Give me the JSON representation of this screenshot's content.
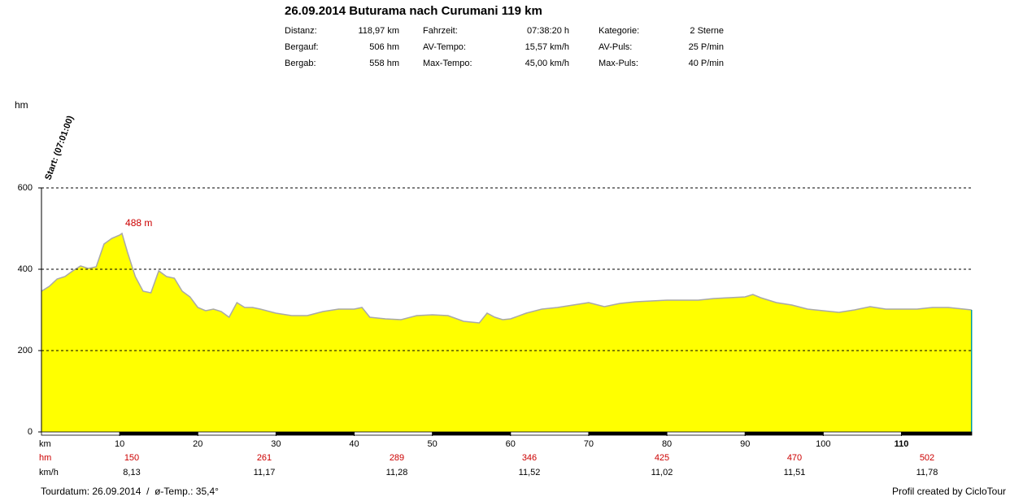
{
  "header": {
    "title": "26.09.2014 Buturama nach Curumani 119 km",
    "stats": [
      [
        {
          "label": "Distanz:",
          "value": "118,97 km"
        },
        {
          "label": "Bergauf:",
          "value": "506 hm"
        },
        {
          "label": "Bergab:",
          "value": "558 hm"
        }
      ],
      [
        {
          "label": "Fahrzeit:",
          "value": "07:38:20 h"
        },
        {
          "label": "AV-Tempo:",
          "value": "15,57 km/h"
        },
        {
          "label": "Max-Tempo:",
          "value": "45,00 km/h"
        }
      ],
      [
        {
          "label": "Kategorie:",
          "value": "2 Sterne"
        },
        {
          "label": "AV-Puls:",
          "value": "25 P/min"
        },
        {
          "label": "Max-Puls:",
          "value": "40 P/min"
        }
      ]
    ]
  },
  "chart_data": {
    "type": "area",
    "ylabel": "hm",
    "xlabel": "km",
    "x": [
      0,
      1,
      2,
      3,
      4,
      5,
      6,
      7,
      8,
      9,
      10,
      10.3,
      11,
      12,
      13,
      14,
      15,
      16,
      17,
      18,
      19,
      20,
      21,
      22,
      23,
      24,
      25,
      26,
      27,
      28,
      30,
      32,
      34,
      36,
      38,
      40,
      41,
      42,
      44,
      46,
      48,
      50,
      52,
      54,
      56,
      57,
      58,
      59,
      60,
      62,
      64,
      66,
      68,
      70,
      72,
      74,
      76,
      78,
      80,
      82,
      84,
      86,
      88,
      90,
      91,
      92,
      94,
      96,
      98,
      100,
      102,
      104,
      106,
      108,
      110,
      112,
      114,
      116,
      118,
      118.97
    ],
    "values": [
      346,
      358,
      376,
      382,
      396,
      408,
      402,
      406,
      462,
      476,
      484,
      488,
      442,
      382,
      346,
      342,
      396,
      382,
      378,
      346,
      332,
      306,
      298,
      302,
      296,
      282,
      318,
      306,
      306,
      302,
      292,
      286,
      286,
      296,
      302,
      302,
      306,
      282,
      278,
      276,
      286,
      288,
      286,
      272,
      268,
      292,
      282,
      276,
      278,
      292,
      302,
      306,
      312,
      318,
      308,
      316,
      320,
      322,
      324,
      324,
      324,
      328,
      330,
      332,
      338,
      330,
      318,
      312,
      302,
      298,
      294,
      300,
      308,
      302,
      302,
      302,
      306,
      306,
      302,
      300
    ],
    "fill": "#ffff00",
    "line_color": "#a8a8a8",
    "xlim": [
      0,
      119
    ],
    "ylim": [
      0,
      600
    ],
    "yticks": [
      0,
      200,
      400,
      600
    ],
    "xticks": [
      10,
      20,
      30,
      40,
      50,
      60,
      70,
      80,
      90,
      100,
      110
    ],
    "grid": true,
    "annotations": [
      {
        "text": "488 m",
        "x": 10.3,
        "y": 488
      },
      {
        "text": "Start: (07:01:00)",
        "x": 0,
        "y": 600
      }
    ]
  },
  "summary": {
    "hm_label": "hm",
    "hm": [
      150,
      261,
      289,
      346,
      425,
      470,
      502
    ],
    "kmh_label": "km/h",
    "kmh": [
      "8,13",
      "11,17",
      "11,28",
      "11,52",
      "11,02",
      "11,51",
      "11,78"
    ]
  },
  "footer": {
    "left": "Tourdatum: 26.09.2014  /  ø-Temp.: 35,4°",
    "right": "Profil created by CicloTour"
  }
}
